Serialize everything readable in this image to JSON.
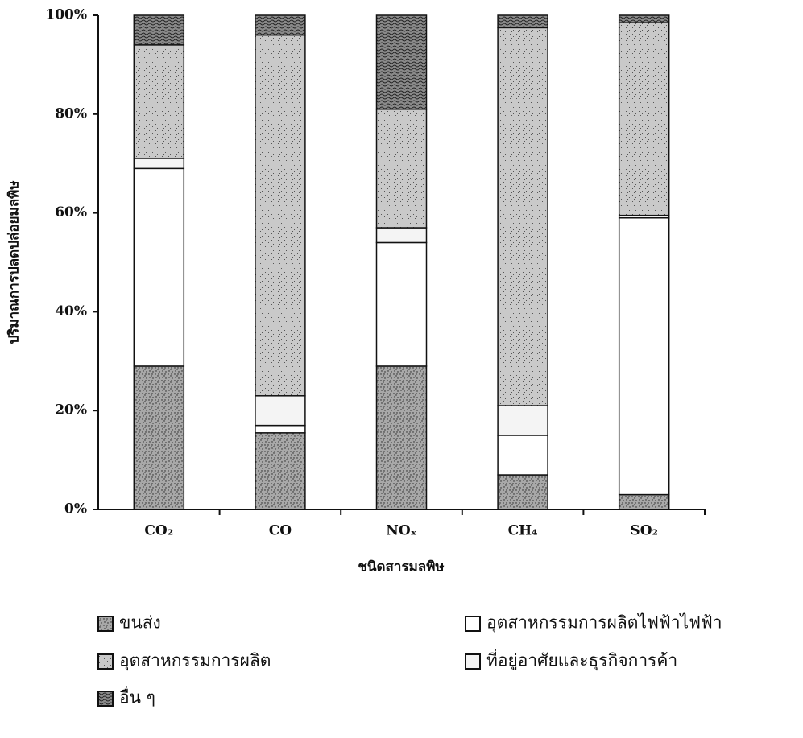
{
  "chart_data": {
    "type": "stacked_bar_100",
    "x_label": "ชนิดสารมลพิษ",
    "y_label": "ปริมาณการปลดปล่อยมลพิษ",
    "categories": [
      "CO₂",
      "CO",
      "NOₓ",
      "CH₄",
      "SO₂"
    ],
    "series": [
      {
        "name": "ขนส่ง",
        "color": "#a8a8a8",
        "values": [
          29,
          15.5,
          29,
          7,
          3
        ]
      },
      {
        "name": "อุตสาหกรรมการผลิต",
        "color": "#c9c9c9",
        "values": [
          23,
          73,
          24,
          76.5,
          39
        ]
      },
      {
        "name": "อื่น ๆ",
        "color": "#8a8a8a",
        "values": [
          6,
          4,
          19,
          2.5,
          1.5
        ]
      },
      {
        "name": "อุตสาหกรรมการผลิตไฟฟ้าไฟฟ้า",
        "color": "#ffffff",
        "values": [
          40,
          1.5,
          25,
          8,
          56
        ]
      },
      {
        "name": "ที่อยู่อาศัยและธุรกิจการค้า",
        "color": "#f4f4f4",
        "values": [
          2,
          6,
          3,
          6,
          0.5
        ]
      }
    ],
    "ylim": [
      0,
      100
    ],
    "yticks": [
      {
        "value": 0,
        "label": "0%"
      },
      {
        "value": 20,
        "label": "20%"
      },
      {
        "value": 40,
        "label": "40%"
      },
      {
        "value": 60,
        "label": "60%"
      },
      {
        "value": 80,
        "label": "80%"
      },
      {
        "value": 100,
        "label": "100%"
      }
    ]
  }
}
